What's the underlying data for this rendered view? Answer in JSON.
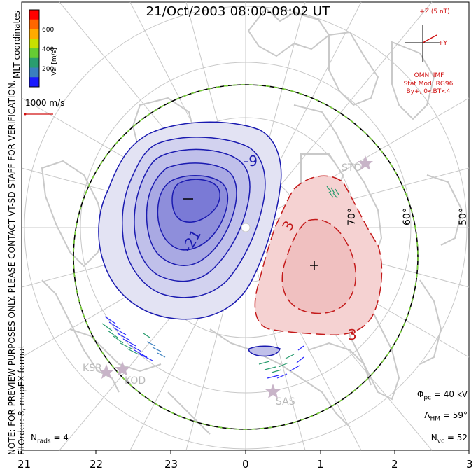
{
  "title": "21/Oct/2003 08:00-08:02 UT",
  "side_note": {
    "line1": "NOTE: FOR PREVIEW PURPOSES ONLY. PLEASE CONTACT VT-SD STAFF FOR VERIFICATION.",
    "line2": "FitOrder: 8, mapEX format"
  },
  "coord_label": "MLT coordinates",
  "colorbar": {
    "label": "Vel [m/s]",
    "ticks": [
      "600",
      "400",
      "200"
    ],
    "colors": [
      "#ff0000",
      "#ff6600",
      "#ffaa00",
      "#c8e000",
      "#66cc33",
      "#2a9d6f",
      "#3a7fbf",
      "#1a1aff"
    ]
  },
  "reference_vector": "1000 m/s",
  "imf": {
    "scale": "+Z (5 nT)",
    "y_axis": "+Y",
    "source": "OMNI IMF",
    "model": "Stat Mod: RG96",
    "condition": "By+, 0<BT<4"
  },
  "stats": {
    "phi_pc": {
      "symbol": "Φ",
      "sub": "pc",
      "value": "= 40 kV"
    },
    "lambda_hm": {
      "symbol": "Λ",
      "sub": "HM",
      "value": "= 59°"
    },
    "n_vc": {
      "symbol": "N",
      "sub": "vc",
      "value": "= 52"
    },
    "n_rads": {
      "symbol": "N",
      "sub": "rads",
      "value": "= 4"
    }
  },
  "mlt_ticks": [
    "21",
    "22",
    "23",
    "0",
    "1",
    "2",
    "3"
  ],
  "latitude_labels": [
    "70°",
    "60°",
    "50°"
  ],
  "radars": [
    "STO",
    "KSR",
    "KOD",
    "SAS"
  ],
  "contour_labels": [
    "-9",
    "-21",
    "3",
    "3"
  ],
  "colors": {
    "negative_line": "#1a1ab0",
    "negative_fill": "#6a6ae6",
    "positive_line": "#c41a1a",
    "positive_fill": "#f2b8b8",
    "coastline": "#c9c9c9",
    "grid": "#c8c8c8",
    "hm_boundary_dash": "#7ad23a",
    "imf": "#d01010"
  }
}
